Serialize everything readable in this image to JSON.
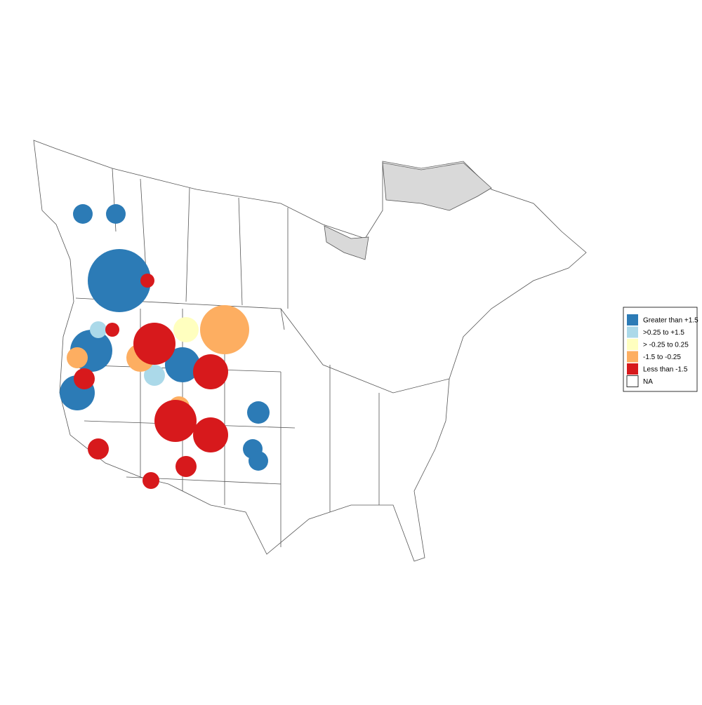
{
  "legend": {
    "items": [
      {
        "label": "Greater than +1.5",
        "color": "#2c7bb6"
      },
      {
        "label": ">0.25 to +1.5",
        "color": "#abd9e9"
      },
      {
        "label": "> -0.25 to 0.25",
        "color": "#ffffbf"
      },
      {
        "label": "-1.5 to -0.25",
        "color": "#fdae61"
      },
      {
        "label": "Less than -1.5",
        "color": "#d7191c"
      },
      {
        "label": "NA",
        "color": "#ffffff"
      }
    ]
  }
}
